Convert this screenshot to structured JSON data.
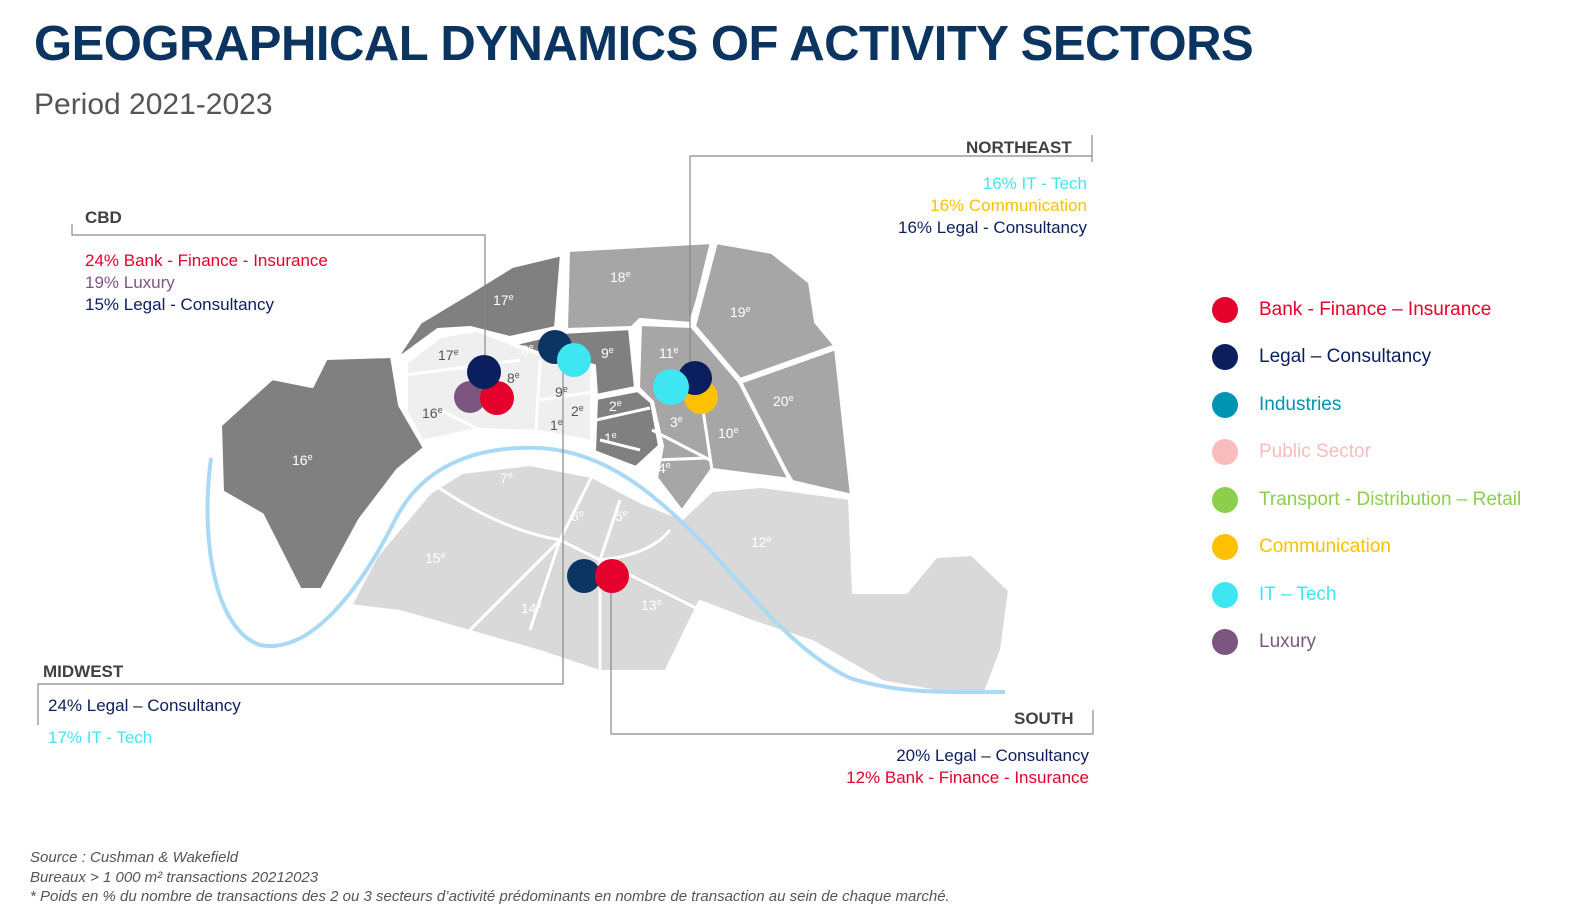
{
  "title": "GEOGRAPHICAL DYNAMICS OF ACTIVITY SECTORS",
  "subtitle": "Period 2021-2023",
  "colors": {
    "bank": "#e4002b",
    "legal": "#0b1f5e",
    "industries": "#0093b2",
    "public": "#f8bcbc",
    "transport": "#8ccf4d",
    "communication": "#ffc000",
    "it": "#3ee6f2",
    "luxury": "#7c5680",
    "midwest_legal": "#0a3461",
    "river": "#aad9f6"
  },
  "callouts": {
    "cbd": {
      "heading": "CBD",
      "lines": [
        {
          "text": "24% Bank - Finance - Insurance",
          "color": "#e4002b"
        },
        {
          "text": "19% Luxury",
          "color": "#7c5680"
        },
        {
          "text": "15% Legal - Consultancy",
          "color": "#0b1f5e"
        }
      ]
    },
    "northeast": {
      "heading": "NORTHEAST",
      "lines": [
        {
          "text": "16% IT - Tech",
          "color": "#3ee6f2"
        },
        {
          "text": "16% Communication",
          "color": "#ffc000"
        },
        {
          "text": "16% Legal - Consultancy",
          "color": "#0b1f5e"
        }
      ]
    },
    "midwest": {
      "heading": "MIDWEST",
      "lines": [
        {
          "text": "24% Legal – Consultancy",
          "color": "#0b1f5e"
        },
        {
          "text": "17% IT - Tech",
          "color": "#3ee6f2"
        }
      ]
    },
    "south": {
      "heading": "SOUTH",
      "lines": [
        {
          "text": "20% Legal – Consultancy",
          "color": "#0b1f5e"
        },
        {
          "text": "12% Bank - Finance - Insurance",
          "color": "#e4002b"
        }
      ]
    }
  },
  "legend": [
    {
      "label": "Bank - Finance – Insurance",
      "color": "#e4002b"
    },
    {
      "label": "Legal – Consultancy",
      "color": "#0b1f5e"
    },
    {
      "label": "Industries",
      "color": "#0093b2"
    },
    {
      "label": "Public Sector",
      "color": "#f8bcbc"
    },
    {
      "label": "Transport - Distribution – Retail",
      "color": "#8ccf4d"
    },
    {
      "label": "Communication",
      "color": "#ffc000"
    },
    {
      "label": "IT – Tech",
      "color": "#3ee6f2"
    },
    {
      "label": "Luxury",
      "color": "#7c5680"
    }
  ],
  "arrondissements": [
    {
      "num": "17",
      "sup": "e"
    },
    {
      "num": "18",
      "sup": "e"
    },
    {
      "num": "19",
      "sup": "e"
    },
    {
      "num": "20",
      "sup": "e"
    },
    {
      "num": "16",
      "sup": "e"
    },
    {
      "num": "17",
      "sup": "e"
    },
    {
      "num": "16",
      "sup": "e"
    },
    {
      "num": "8",
      "sup": "e"
    },
    {
      "num": "8",
      "sup": "e"
    },
    {
      "num": "9",
      "sup": "e"
    },
    {
      "num": "9",
      "sup": "e"
    },
    {
      "num": "2",
      "sup": "e"
    },
    {
      "num": "1",
      "sup": "e"
    },
    {
      "num": "2",
      "sup": "e"
    },
    {
      "num": "1",
      "sup": "e"
    },
    {
      "num": "11",
      "sup": "e"
    },
    {
      "num": "3",
      "sup": "e"
    },
    {
      "num": "10",
      "sup": "e"
    },
    {
      "num": "4",
      "sup": "e"
    },
    {
      "num": "7",
      "sup": "e"
    },
    {
      "num": "6",
      "sup": "e"
    },
    {
      "num": "5",
      "sup": "e"
    },
    {
      "num": "15",
      "sup": "e"
    },
    {
      "num": "14",
      "sup": "e"
    },
    {
      "num": "13",
      "sup": "e"
    },
    {
      "num": "12",
      "sup": "e"
    }
  ],
  "footer": {
    "source": "Source : Cushman & Wakefield",
    "scope": "Bureaux > 1 000 m² transactions 20212023",
    "note": "* Poids en % du nombre de transactions des 2 ou 3 secteurs d’activité prédominants en nombre de transaction au sein de chaque marché."
  }
}
